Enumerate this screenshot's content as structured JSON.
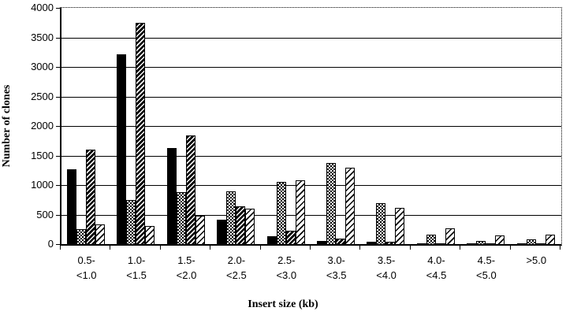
{
  "colors": {
    "background": "#ffffff",
    "axis": "#000000",
    "text": "#000000",
    "bar_border": "#000000",
    "bar_fill_solid": "#000000"
  },
  "chart_data": {
    "type": "bar",
    "title": "",
    "xlabel": "Insert size (kb)",
    "ylabel": "Number of clones",
    "ylim": [
      0,
      4000
    ],
    "yticks": [
      0,
      500,
      1000,
      1500,
      2000,
      2500,
      3000,
      3500,
      4000
    ],
    "grid": true,
    "legend": "none",
    "categories": [
      "0.5-\n<1.0",
      "1.0-\n<1.5",
      "1.5-\n<2.0",
      "2.0-\n<2.5",
      "2.5-\n<3.0",
      "3.0-\n<3.5",
      "3.5-\n<4.0",
      "4.0-\n<4.5",
      "4.5-\n<5.0",
      ">5.0"
    ],
    "series": [
      {
        "name": "solid-black",
        "pattern": "solid",
        "values": [
          1270,
          3220,
          1630,
          410,
          140,
          50,
          40,
          20,
          15,
          15
        ]
      },
      {
        "name": "checkerboard",
        "pattern": "checker",
        "values": [
          250,
          750,
          880,
          890,
          1050,
          1380,
          700,
          160,
          50,
          80
        ]
      },
      {
        "name": "dense-diagonal-hatch",
        "pattern": "dense",
        "values": [
          1600,
          3750,
          1840,
          640,
          230,
          90,
          40,
          10,
          10,
          10
        ]
      },
      {
        "name": "light-diagonal-hatch",
        "pattern": "light",
        "values": [
          340,
          310,
          480,
          600,
          1080,
          1290,
          610,
          270,
          150,
          160
        ]
      }
    ]
  }
}
